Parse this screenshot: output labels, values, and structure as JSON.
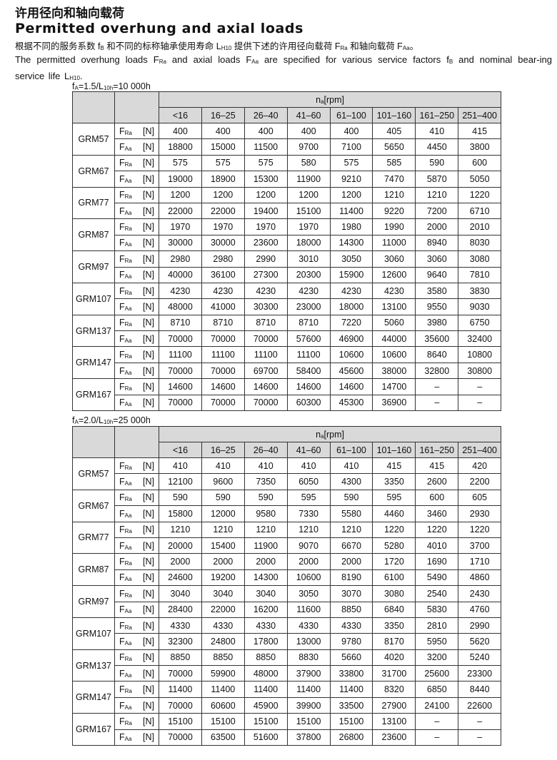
{
  "title_cn": "许用径向和轴向载荷",
  "title_en": "Permitted overhung and axial loads",
  "intro_cn": [
    {
      "t": "根据不同的服务系数 f"
    },
    {
      "sub": "B"
    },
    {
      "t": " 和不同的标称轴承使用寿命 L"
    },
    {
      "sub": "H10"
    },
    {
      "t": " 提供下述的许用径向载荷 F"
    },
    {
      "sub": "Ra"
    },
    {
      "t": " 和轴向载荷 F"
    },
    {
      "sub": "Aa"
    },
    {
      "t": "。"
    }
  ],
  "intro_en": [
    {
      "t": "The permitted overhung loads F"
    },
    {
      "sub": "Ra"
    },
    {
      "t": " and axial loads F"
    },
    {
      "sub": "Aa"
    },
    {
      "t": " are specified for various service factors f"
    },
    {
      "sub": "B"
    },
    {
      "t": " and nominal bear-ing service life L"
    },
    {
      "sub": "H10"
    },
    {
      "t": "."
    }
  ],
  "speed_header": {
    "symbol": "n",
    "sub": "a",
    "unit": "[rpm]"
  },
  "speed_ranges": [
    "<16",
    "16–25",
    "26–40",
    "41–60",
    "61–100",
    "101–160",
    "161–250",
    "251–400"
  ],
  "row_labels": [
    {
      "symbol": "F",
      "sub": "Ra",
      "unit": "[N]"
    },
    {
      "symbol": "F",
      "sub": "Aa",
      "unit": "[N]"
    }
  ],
  "tables": [
    {
      "caption": [
        {
          "t": "f"
        },
        {
          "sub": "A"
        },
        {
          "t": "=1.5/L"
        },
        {
          "sub": "10h"
        },
        {
          "t": "=10 000h"
        }
      ],
      "models": [
        {
          "name": "GRM57",
          "FRa": [
            "400",
            "400",
            "400",
            "400",
            "400",
            "405",
            "410",
            "415"
          ],
          "FAa": [
            "18800",
            "15000",
            "11500",
            "9700",
            "7100",
            "5650",
            "4450",
            "3800"
          ]
        },
        {
          "name": "GRM67",
          "FRa": [
            "575",
            "575",
            "575",
            "580",
            "575",
            "585",
            "590",
            "600"
          ],
          "FAa": [
            "19000",
            "18900",
            "15300",
            "11900",
            "9210",
            "7470",
            "5870",
            "5050"
          ]
        },
        {
          "name": "GRM77",
          "FRa": [
            "1200",
            "1200",
            "1200",
            "1200",
            "1200",
            "1210",
            "1210",
            "1220"
          ],
          "FAa": [
            "22000",
            "22000",
            "19400",
            "15100",
            "11400",
            "9220",
            "7200",
            "6710"
          ]
        },
        {
          "name": "GRM87",
          "FRa": [
            "1970",
            "1970",
            "1970",
            "1970",
            "1980",
            "1990",
            "2000",
            "2010"
          ],
          "FAa": [
            "30000",
            "30000",
            "23600",
            "18000",
            "14300",
            "11000",
            "8940",
            "8030"
          ]
        },
        {
          "name": "GRM97",
          "FRa": [
            "2980",
            "2980",
            "2990",
            "3010",
            "3050",
            "3060",
            "3060",
            "3080"
          ],
          "FAa": [
            "40000",
            "36100",
            "27300",
            "20300",
            "15900",
            "12600",
            "9640",
            "7810"
          ]
        },
        {
          "name": "GRM107",
          "FRa": [
            "4230",
            "4230",
            "4230",
            "4230",
            "4230",
            "4230",
            "3580",
            "3830"
          ],
          "FAa": [
            "48000",
            "41000",
            "30300",
            "23000",
            "18000",
            "13100",
            "9550",
            "9030"
          ]
        },
        {
          "name": "GRM137",
          "FRa": [
            "8710",
            "8710",
            "8710",
            "8710",
            "7220",
            "5060",
            "3980",
            "6750"
          ],
          "FAa": [
            "70000",
            "70000",
            "70000",
            "57600",
            "46900",
            "44000",
            "35600",
            "32400"
          ]
        },
        {
          "name": "GRM147",
          "FRa": [
            "11100",
            "11100",
            "11100",
            "11100",
            "10600",
            "10600",
            "8640",
            "10800"
          ],
          "FAa": [
            "70000",
            "70000",
            "69700",
            "58400",
            "45600",
            "38000",
            "32800",
            "30800"
          ]
        },
        {
          "name": "GRM167",
          "FRa": [
            "14600",
            "14600",
            "14600",
            "14600",
            "14600",
            "14700",
            "–",
            "–"
          ],
          "FAa": [
            "70000",
            "70000",
            "70000",
            "60300",
            "45300",
            "36900",
            "–",
            "–"
          ]
        }
      ]
    },
    {
      "caption": [
        {
          "t": "f"
        },
        {
          "sub": "A"
        },
        {
          "t": "=2.0/L"
        },
        {
          "sub": "10h"
        },
        {
          "t": "=25 000h"
        }
      ],
      "models": [
        {
          "name": "GRM57",
          "FRa": [
            "410",
            "410",
            "410",
            "410",
            "410",
            "415",
            "415",
            "420"
          ],
          "FAa": [
            "12100",
            "9600",
            "7350",
            "6050",
            "4300",
            "3350",
            "2600",
            "2200"
          ]
        },
        {
          "name": "GRM67",
          "FRa": [
            "590",
            "590",
            "590",
            "595",
            "590",
            "595",
            "600",
            "605"
          ],
          "FAa": [
            "15800",
            "12000",
            "9580",
            "7330",
            "5580",
            "4460",
            "3460",
            "2930"
          ]
        },
        {
          "name": "GRM77",
          "FRa": [
            "1210",
            "1210",
            "1210",
            "1210",
            "1210",
            "1220",
            "1220",
            "1220"
          ],
          "FAa": [
            "20000",
            "15400",
            "11900",
            "9070",
            "6670",
            "5280",
            "4010",
            "3700"
          ]
        },
        {
          "name": "GRM87",
          "FRa": [
            "2000",
            "2000",
            "2000",
            "2000",
            "2000",
            "1720",
            "1690",
            "1710"
          ],
          "FAa": [
            "24600",
            "19200",
            "14300",
            "10600",
            "8190",
            "6100",
            "5490",
            "4860"
          ]
        },
        {
          "name": "GRM97",
          "FRa": [
            "3040",
            "3040",
            "3040",
            "3050",
            "3070",
            "3080",
            "2540",
            "2430"
          ],
          "FAa": [
            "28400",
            "22000",
            "16200",
            "11600",
            "8850",
            "6840",
            "5830",
            "4760"
          ]
        },
        {
          "name": "GRM107",
          "FRa": [
            "4330",
            "4330",
            "4330",
            "4330",
            "4330",
            "3350",
            "2810",
            "2990"
          ],
          "FAa": [
            "32300",
            "24800",
            "17800",
            "13000",
            "9780",
            "8170",
            "5950",
            "5620"
          ]
        },
        {
          "name": "GRM137",
          "FRa": [
            "8850",
            "8850",
            "8850",
            "8830",
            "5660",
            "4020",
            "3200",
            "5240"
          ],
          "FAa": [
            "70000",
            "59900",
            "48000",
            "37900",
            "33800",
            "31700",
            "25600",
            "23300"
          ]
        },
        {
          "name": "GRM147",
          "FRa": [
            "11400",
            "11400",
            "11400",
            "11400",
            "11400",
            "8320",
            "6850",
            "8440"
          ],
          "FAa": [
            "70000",
            "60600",
            "45900",
            "39900",
            "33500",
            "27900",
            "24100",
            "22600"
          ]
        },
        {
          "name": "GRM167",
          "FRa": [
            "15100",
            "15100",
            "15100",
            "15100",
            "15100",
            "13100",
            "–",
            "–"
          ],
          "FAa": [
            "70000",
            "63500",
            "51600",
            "37800",
            "26800",
            "23600",
            "–",
            "–"
          ]
        }
      ]
    }
  ]
}
